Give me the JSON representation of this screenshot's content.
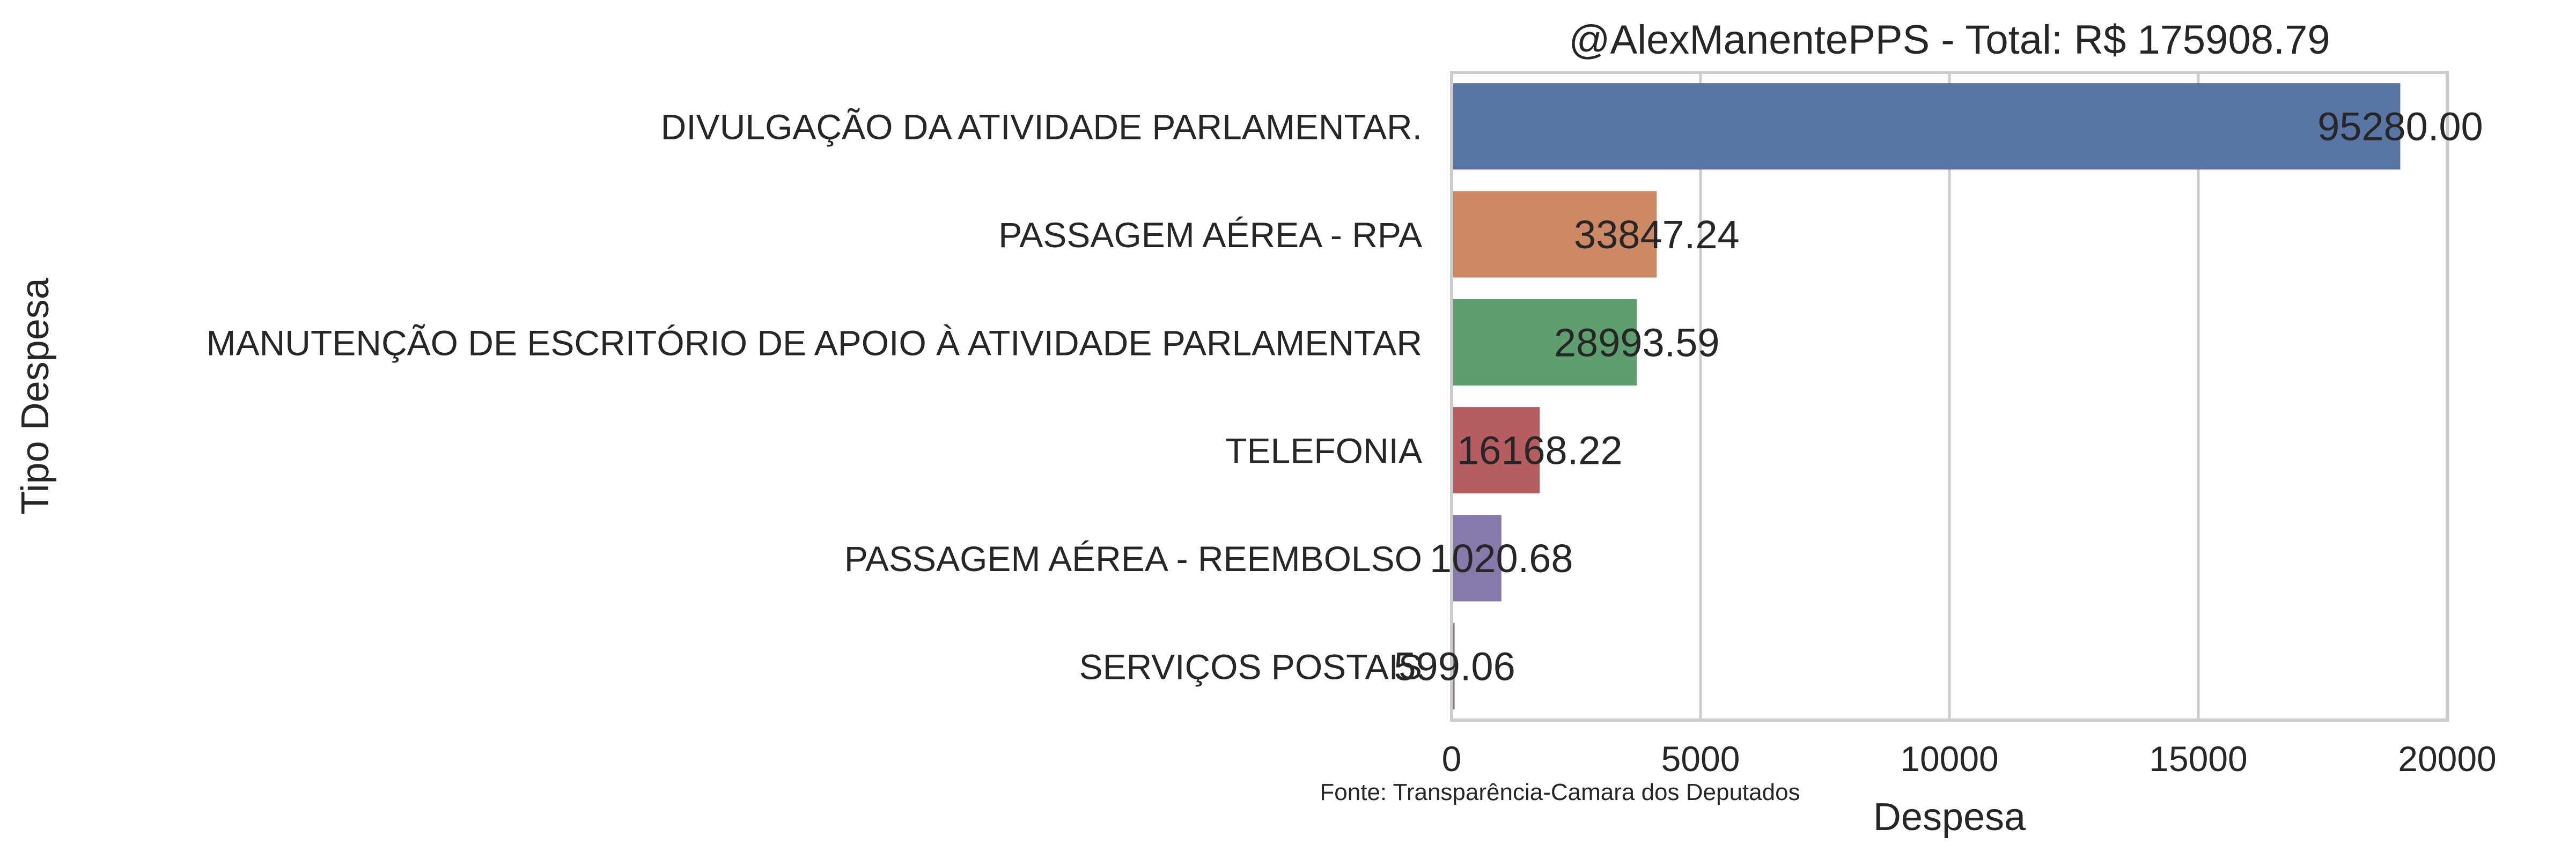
{
  "chart_data": {
    "type": "bar",
    "orientation": "horizontal",
    "title": "@AlexManentePPS - Total: R$ 175908.79",
    "xlabel": "Despesa",
    "ylabel": "Tipo Despesa",
    "source_note": "Fonte: Transparência-Camara dos Deputados",
    "xlim": [
      0,
      20000
    ],
    "xticks": [
      0,
      5000,
      10000,
      15000,
      20000
    ],
    "grid": true,
    "categories": [
      "DIVULGAÇÃO DA ATIVIDADE PARLAMENTAR.",
      "PASSAGEM AÉREA - RPA",
      "MANUTENÇÃO DE ESCRITÓRIO DE APOIO À ATIVIDADE PARLAMENTAR",
      "TELEFONIA",
      "PASSAGEM AÉREA - REEMBOLSO",
      "SERVIÇOS POSTAIS"
    ],
    "values": [
      19056,
      4120,
      3720,
      1770,
      1000,
      60
    ],
    "value_labels": [
      "95280.00",
      "33847.24",
      "28993.59",
      "16168.22",
      "1020.68",
      "599.06"
    ],
    "colors": [
      "#5875a4",
      "#cc8963",
      "#5f9e6e",
      "#b55d60",
      "#857aab",
      "#8d7866"
    ]
  }
}
